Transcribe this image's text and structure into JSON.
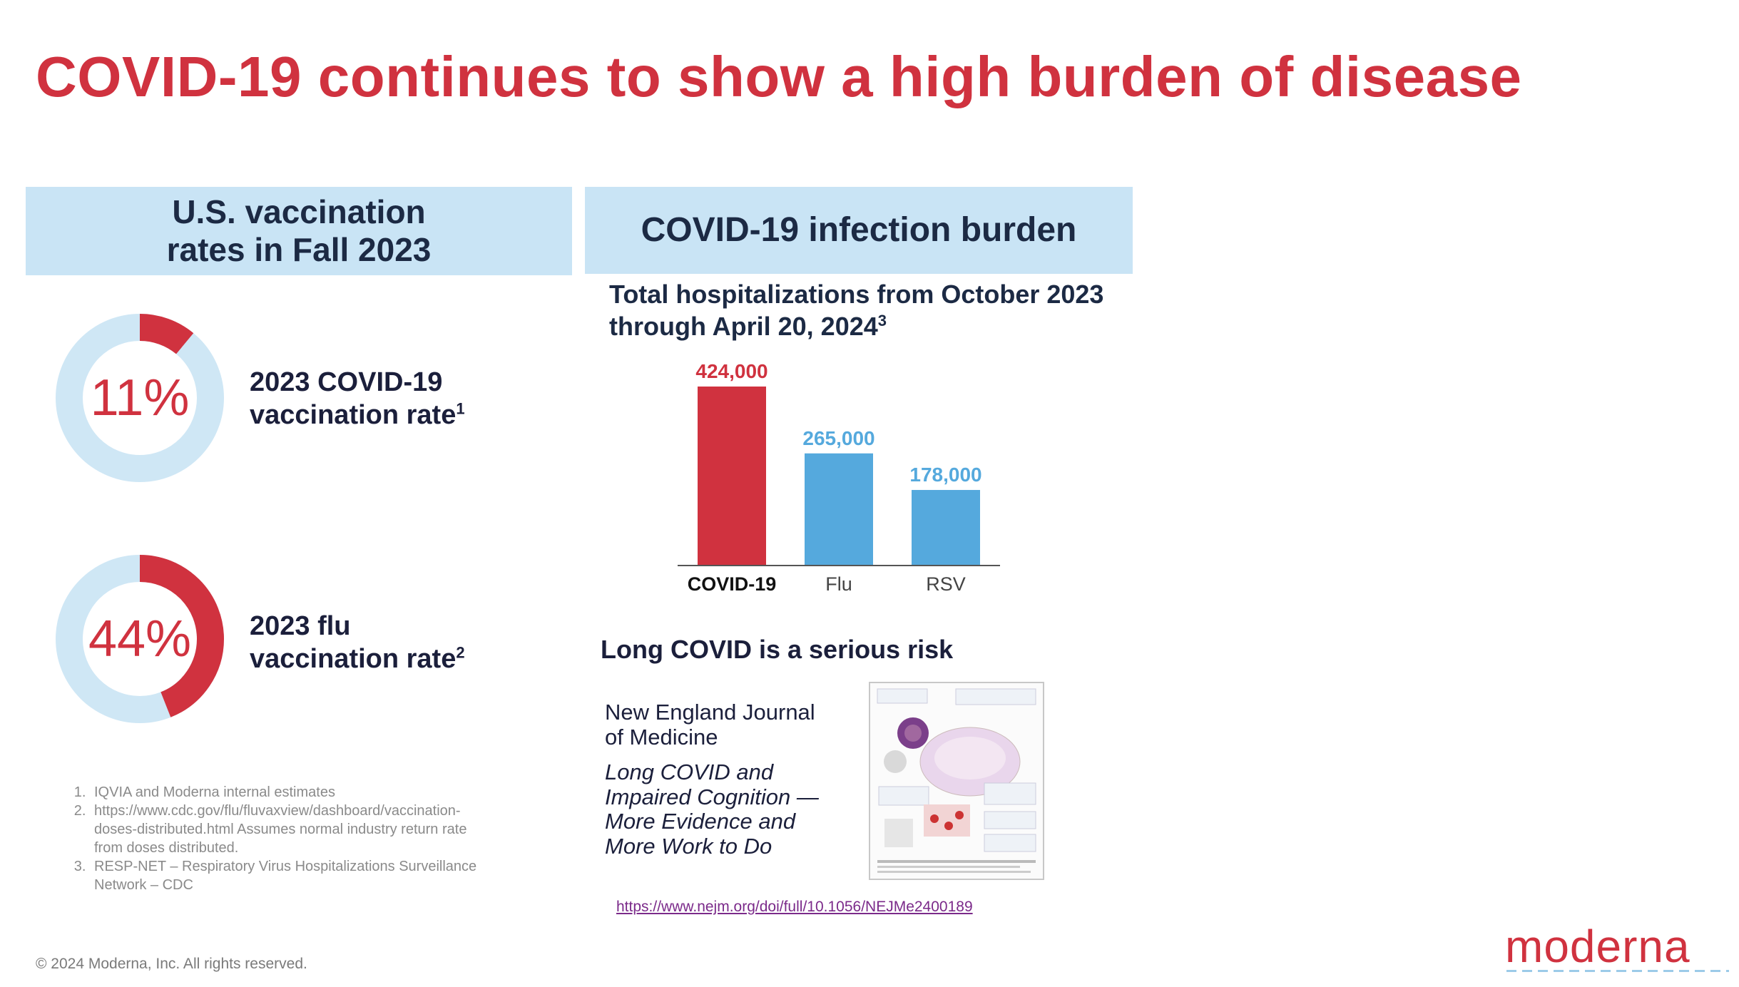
{
  "title": "COVID-19 continues to show a high burden of disease",
  "left_panel": {
    "header_line1": "U.S. vaccination",
    "header_line2": "rates in Fall 2023",
    "donuts": [
      {
        "percent": 11,
        "percent_label": "11%",
        "label_line1": "2023 COVID-19",
        "label_line2": "vaccination rate",
        "ref": "1",
        "fill_color": "#d0323f",
        "track_color": "#cfe7f5"
      },
      {
        "percent": 44,
        "percent_label": "44%",
        "label_line1": "2023 flu",
        "label_line2": "vaccination rate",
        "ref": "2",
        "fill_color": "#d0323f",
        "track_color": "#cfe7f5"
      }
    ]
  },
  "footnotes": [
    "IQVIA and Moderna internal estimates",
    "https://www.cdc.gov/flu/fluvaxview/dashboard/vaccination-doses-distributed.html Assumes normal industry return rate from doses distributed.",
    "RESP-NET – Respiratory Virus Hospitalizations Surveillance Network – CDC"
  ],
  "right_panel": {
    "header": "COVID-19 infection burden",
    "subtitle_line1": "Total hospitalizations from October 2023",
    "subtitle_line2": "through April 20, 2024",
    "subtitle_ref": "3"
  },
  "chart_data": {
    "type": "bar",
    "title": "Total hospitalizations from October 2023 through April 20, 2024",
    "categories": [
      "COVID-19",
      "Flu",
      "RSV"
    ],
    "values": [
      424000,
      265000,
      178000
    ],
    "value_labels": [
      "424,000",
      "265,000",
      "178,000"
    ],
    "colors": [
      "#d0323f",
      "#55a9dd",
      "#55a9dd"
    ],
    "ylim": [
      0,
      424000
    ],
    "xlabel": "",
    "ylabel": "",
    "grid": false
  },
  "long_covid": {
    "heading": "Long COVID is a serious risk",
    "journal_line1": "New England Journal",
    "journal_line2": "of Medicine",
    "article_title": "Long COVID and Impaired Cognition — More Evidence and More Work to Do",
    "link": "https://www.nejm.org/doi/full/10.1056/NEJMe2400189"
  },
  "copyright": "© 2024 Moderna, Inc. All rights reserved.",
  "logo": "moderna"
}
